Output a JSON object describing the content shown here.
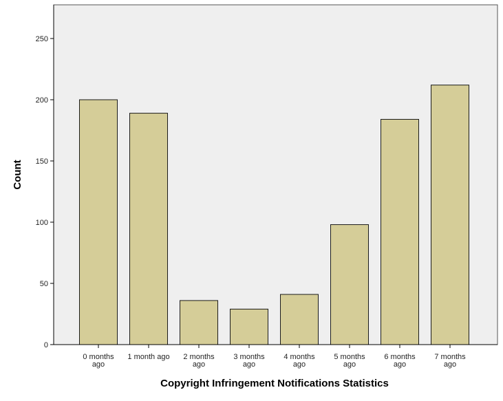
{
  "chart_data": {
    "type": "bar",
    "categories": [
      [
        "0 months",
        "ago"
      ],
      [
        "1 month ago"
      ],
      [
        "2 months",
        "ago"
      ],
      [
        "3 months",
        "ago"
      ],
      [
        "4 months",
        "ago"
      ],
      [
        "5 months",
        "ago"
      ],
      [
        "6 months",
        "ago"
      ],
      [
        "7 months",
        "ago"
      ]
    ],
    "values": [
      200,
      189,
      36,
      29,
      41,
      98,
      184,
      212
    ],
    "title": "",
    "xlabel": "Copyright Infringement Notifications Statistics",
    "ylabel": "Count",
    "ylim": [
      0,
      250
    ],
    "yticks": [
      0,
      50,
      100,
      150,
      200,
      250
    ],
    "grid": false,
    "colors": {
      "bar_fill": "#d5cd98",
      "bar_stroke": "#1a1a1a",
      "plot_background": "#efefef",
      "axis": "#000000"
    }
  }
}
